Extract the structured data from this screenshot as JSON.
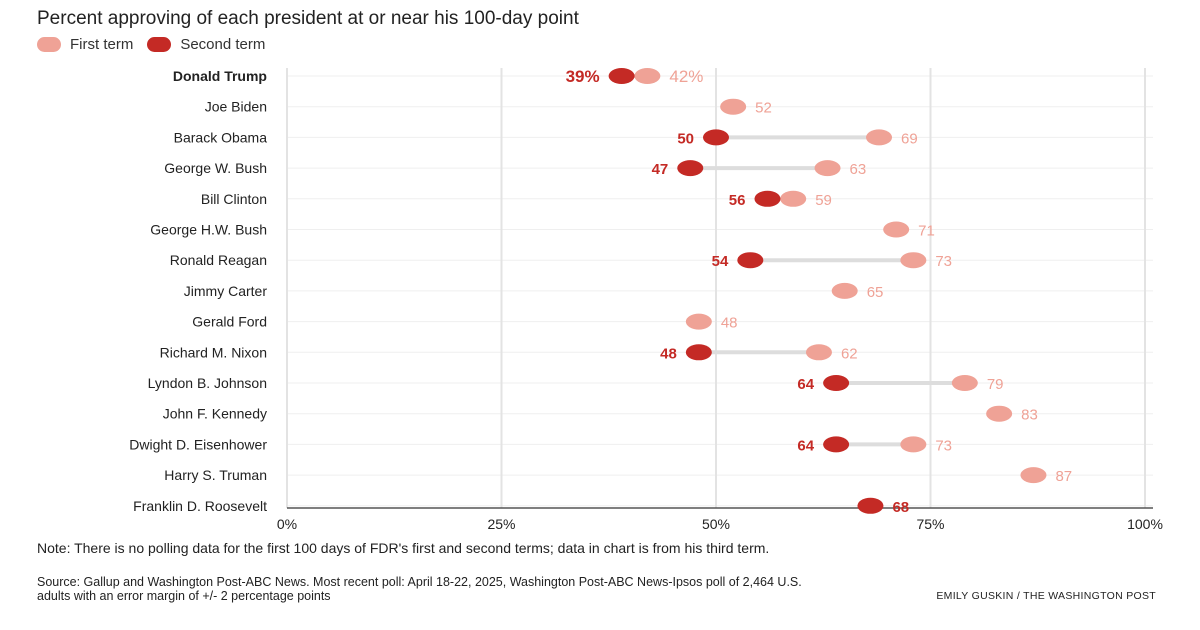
{
  "title": "Percent approving of each president at or near his 100-day point",
  "legend": {
    "first_label": "First term",
    "second_label": "Second term"
  },
  "colors": {
    "first_term": "#efa296",
    "second_term": "#c42a25",
    "connector": "#dddddd",
    "grid": "#e3e3e3",
    "axis": "#555555"
  },
  "chart_data": {
    "type": "dot",
    "title": "Percent approving of each president at or near his 100-day point",
    "xlim": [
      0,
      100
    ],
    "x_ticks": [
      {
        "value": 0,
        "label": "0%"
      },
      {
        "value": 25,
        "label": "25%"
      },
      {
        "value": 50,
        "label": "50%"
      },
      {
        "value": 75,
        "label": "75%"
      },
      {
        "value": 100,
        "label": "100%"
      }
    ],
    "series": [
      {
        "name": "First term"
      },
      {
        "name": "Second term"
      }
    ],
    "rows": [
      {
        "name": "Donald Trump",
        "first": 42,
        "second": 39,
        "first_label": "42%",
        "second_label": "39%",
        "bold": true
      },
      {
        "name": "Joe Biden",
        "first": 52,
        "second": null,
        "first_label": "52",
        "second_label": ""
      },
      {
        "name": "Barack Obama",
        "first": 69,
        "second": 50,
        "first_label": "69",
        "second_label": "50"
      },
      {
        "name": "George W. Bush",
        "first": 63,
        "second": 47,
        "first_label": "63",
        "second_label": "47"
      },
      {
        "name": "Bill Clinton",
        "first": 59,
        "second": 56,
        "first_label": "59",
        "second_label": "56"
      },
      {
        "name": "George H.W. Bush",
        "first": 71,
        "second": null,
        "first_label": "71",
        "second_label": ""
      },
      {
        "name": "Ronald Reagan",
        "first": 73,
        "second": 54,
        "first_label": "73",
        "second_label": "54"
      },
      {
        "name": "Jimmy Carter",
        "first": 65,
        "second": null,
        "first_label": "65",
        "second_label": ""
      },
      {
        "name": "Gerald Ford",
        "first": 48,
        "second": null,
        "first_label": "48",
        "second_label": ""
      },
      {
        "name": "Richard M. Nixon",
        "first": 62,
        "second": 48,
        "first_label": "62",
        "second_label": "48"
      },
      {
        "name": "Lyndon B. Johnson",
        "first": 79,
        "second": 64,
        "first_label": "79",
        "second_label": "64"
      },
      {
        "name": "John F. Kennedy",
        "first": 83,
        "second": null,
        "first_label": "83",
        "second_label": ""
      },
      {
        "name": "Dwight D. Eisenhower",
        "first": 73,
        "second": 64,
        "first_label": "73",
        "second_label": "64"
      },
      {
        "name": "Harry S. Truman",
        "first": 87,
        "second": null,
        "first_label": "87",
        "second_label": ""
      },
      {
        "name": "Franklin D. Roosevelt",
        "first": null,
        "second": 68,
        "first_label": "",
        "second_label": "68"
      }
    ],
    "grid": true
  },
  "note": "Note: There is no polling data for the first 100 days of FDR's first and second terms; data in chart is from his third term.",
  "source": "Source: Gallup and Washington Post-ABC News. Most recent poll: April 18-22, 2025, Washington Post-ABC News-Ipsos poll of 2,464 U.S. adults with an error margin of +/- 2 percentage points",
  "credit": "EMILY GUSKIN / THE WASHINGTON POST"
}
